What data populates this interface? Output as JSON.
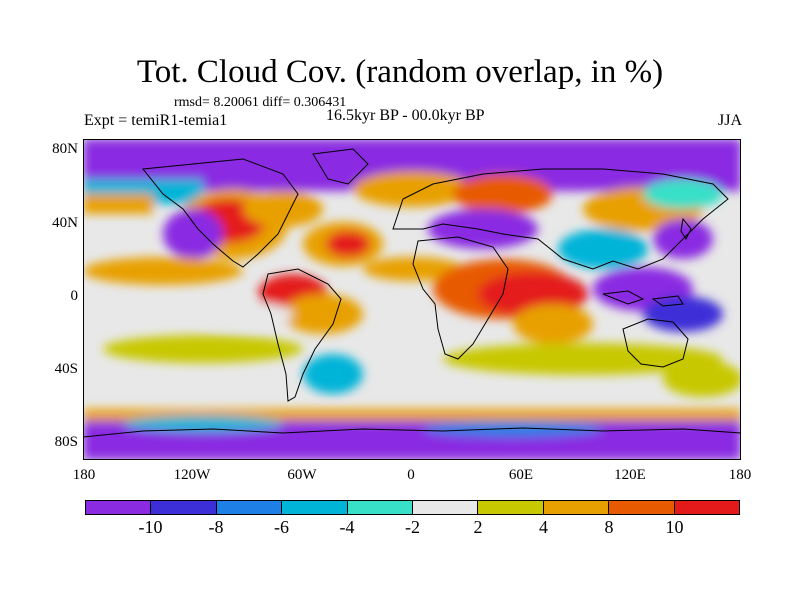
{
  "title": "Tot. Cloud Cov. (random overlap, in %)",
  "stats": "rmsd= 8.20061 diff= 0.306431",
  "experiment": "Expt = temiR1-temia1",
  "period": "16.5kyr BP - 00.0kyr BP",
  "season": "JJA",
  "lat_labels": [
    "80N",
    "40N",
    "0",
    "40S",
    "80S"
  ],
  "lon_labels": [
    "180",
    "120W",
    "60W",
    "0",
    "60E",
    "120E",
    "180"
  ],
  "colorbar": {
    "labels": [
      "-10",
      "-8",
      "-6",
      "-4",
      "-2",
      "2",
      "4",
      "8",
      "10"
    ],
    "colors": [
      "#8a2be2",
      "#3c2fd8",
      "#1e7fe6",
      "#00b4d8",
      "#38e0c8",
      "#e8e8e8",
      "#c8c800",
      "#e8a000",
      "#e85a00",
      "#e41a1a"
    ]
  }
}
